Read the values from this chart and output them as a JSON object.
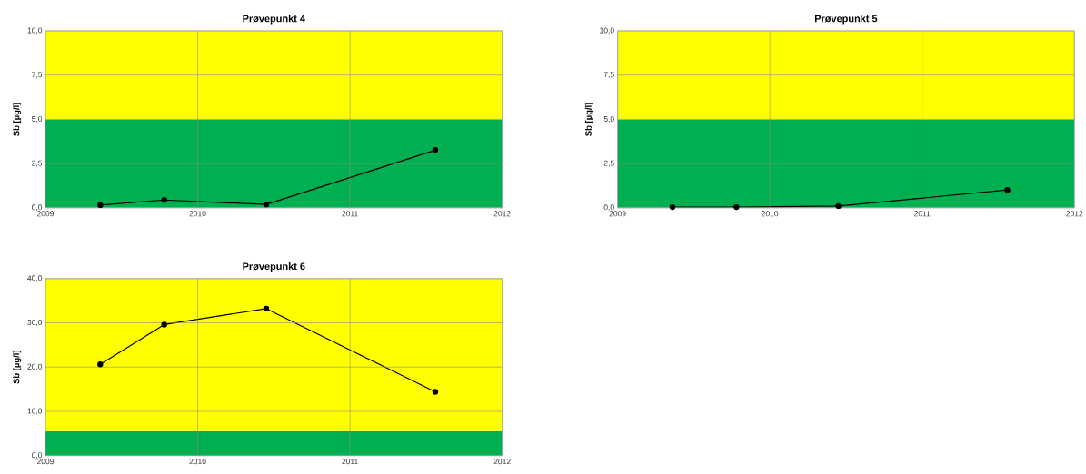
{
  "chart_data": [
    {
      "type": "line",
      "title": "Prøvepunkt 4",
      "ylabel": "Sb [µg/l]",
      "x": [
        2009.36,
        2009.78,
        2010.45,
        2011.56
      ],
      "series": [
        {
          "color": "#000000",
          "values": [
            0.15,
            0.44,
            0.19,
            3.26
          ]
        }
      ],
      "xlim": [
        2009,
        2012
      ],
      "xticks": [
        2009,
        2010,
        2011,
        2012
      ],
      "ylim": [
        0,
        10
      ],
      "yticks": [
        {
          "value": 0,
          "label": "0,0"
        },
        {
          "value": 2.5,
          "label": "2,5"
        },
        {
          "value": 5,
          "label": "5,0"
        },
        {
          "value": 7.5,
          "label": "7,5"
        },
        {
          "value": 10,
          "label": "10,0"
        }
      ],
      "bands": [
        {
          "axis": "y",
          "from": 0,
          "to": 5,
          "color": "#00b050"
        },
        {
          "axis": "y",
          "from": 5,
          "to": 10,
          "color": "#ffff00"
        }
      ],
      "grid": true,
      "marker": "circle"
    },
    {
      "type": "line",
      "title": "Prøvepunkt 5",
      "ylabel": "Sb [µg/l]",
      "x": [
        2009.36,
        2009.78,
        2010.45,
        2011.56
      ],
      "series": [
        {
          "color": "#000000",
          "values": [
            0.04,
            0.04,
            0.1,
            1.01
          ]
        }
      ],
      "xlim": [
        2009,
        2012
      ],
      "xticks": [
        2009,
        2010,
        2011,
        2012
      ],
      "ylim": [
        0,
        10
      ],
      "yticks": [
        {
          "value": 0,
          "label": "0,0"
        },
        {
          "value": 2.5,
          "label": "2,5"
        },
        {
          "value": 5,
          "label": "5,0"
        },
        {
          "value": 7.5,
          "label": "7,5"
        },
        {
          "value": 10,
          "label": "10,0"
        }
      ],
      "bands": [
        {
          "axis": "y",
          "from": 0,
          "to": 5,
          "color": "#00b050"
        },
        {
          "axis": "y",
          "from": 5,
          "to": 10,
          "color": "#ffff00"
        }
      ],
      "grid": true,
      "marker": "circle"
    },
    {
      "type": "line",
      "title": "Prøvepunkt 6",
      "ylabel": "Sb [µg/l]",
      "x": [
        2009.36,
        2009.78,
        2010.45,
        2011.56
      ],
      "series": [
        {
          "color": "#000000",
          "values": [
            20.6,
            29.6,
            33.2,
            14.4
          ]
        }
      ],
      "xlim": [
        2009,
        2012
      ],
      "xticks": [
        2009,
        2010,
        2011,
        2012
      ],
      "ylim": [
        0,
        40
      ],
      "yticks": [
        {
          "value": 0,
          "label": "0,0"
        },
        {
          "value": 10,
          "label": "10,0"
        },
        {
          "value": 20,
          "label": "20,0"
        },
        {
          "value": 30,
          "label": "30,0"
        },
        {
          "value": 40,
          "label": "40,0"
        }
      ],
      "bands": [
        {
          "axis": "y",
          "from": 0,
          "to": 5.5,
          "color": "#00b050"
        },
        {
          "axis": "y",
          "from": 5.5,
          "to": 40,
          "color": "#ffff00"
        }
      ],
      "grid": true,
      "marker": "circle"
    }
  ]
}
